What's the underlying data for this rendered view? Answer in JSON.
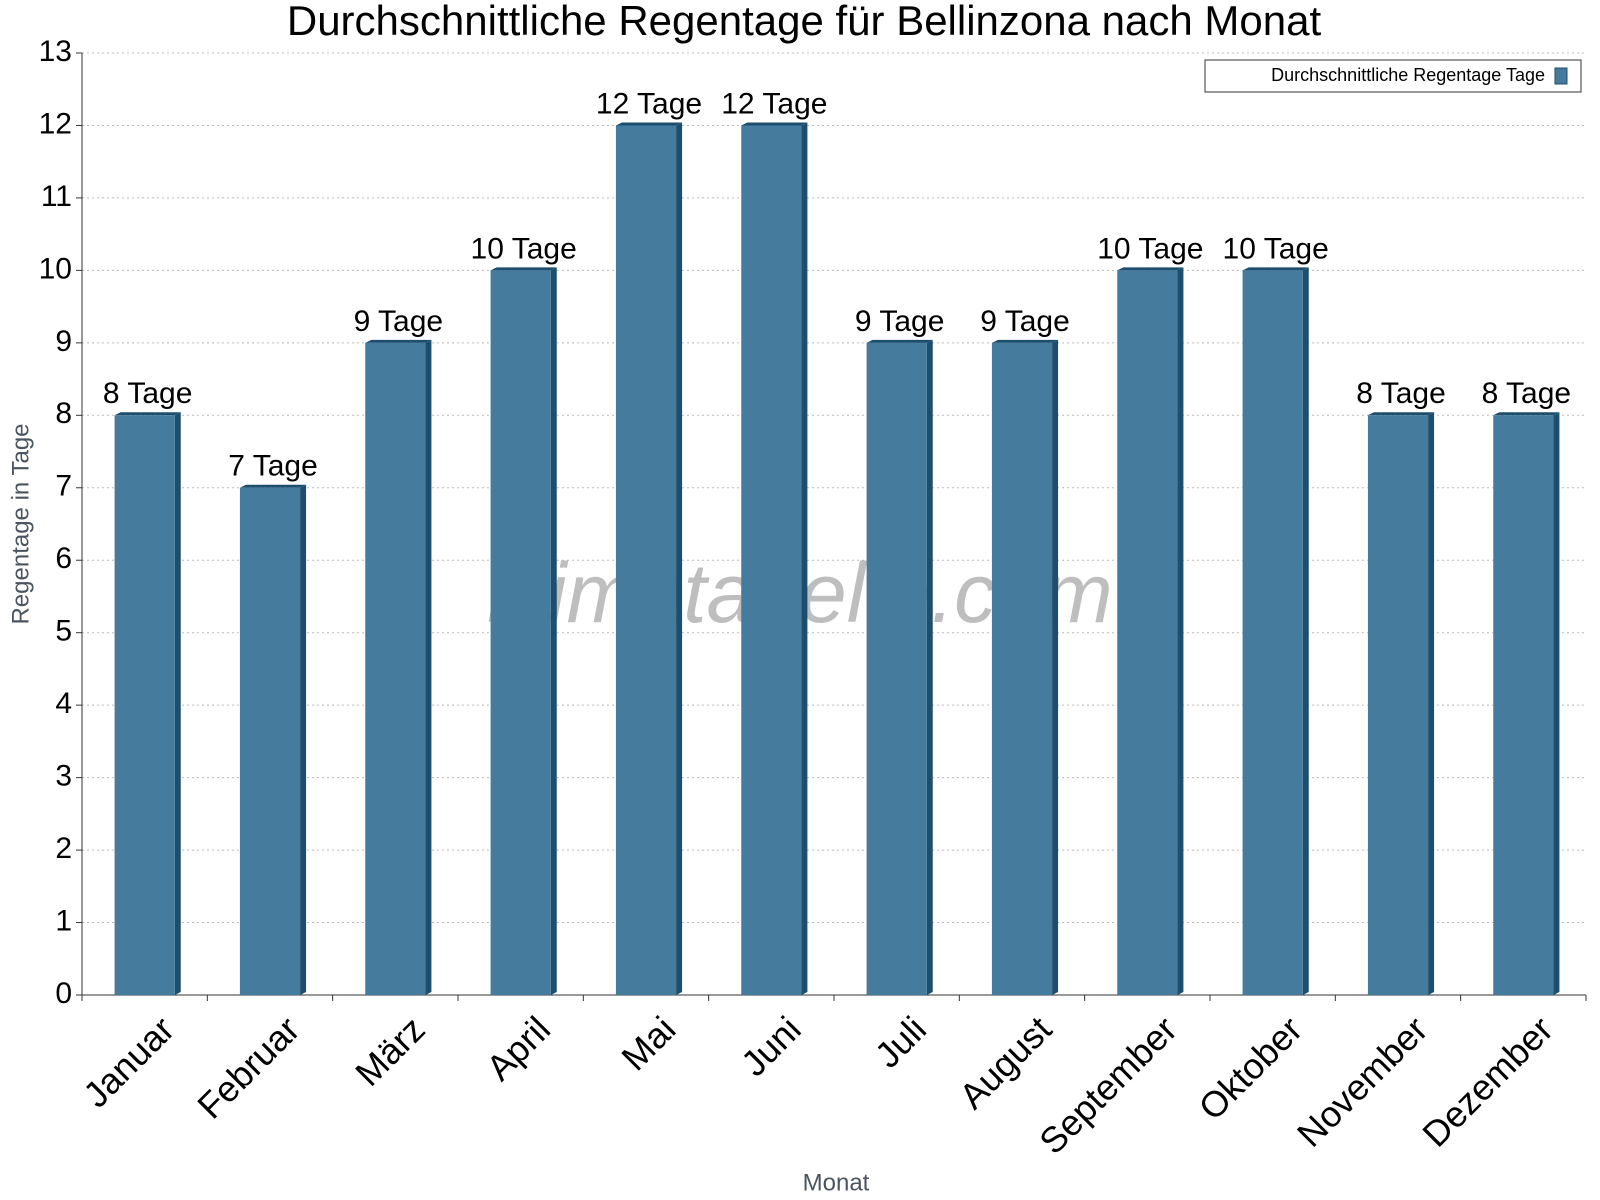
{
  "chart_data": {
    "type": "bar",
    "title": "Durchschnittliche Regentage für Bellinzona nach Monat",
    "x_label": "Monat",
    "y_label": "Regentage in Tage",
    "watermark": "klimatabelle.com",
    "categories": [
      "Januar",
      "Februar",
      "März",
      "April",
      "Mai",
      "Juni",
      "Juli",
      "August",
      "September",
      "Oktober",
      "November",
      "Dezember"
    ],
    "series": [
      {
        "name": "Durchschnittliche Regentage Tage",
        "color": "#457b9d",
        "values": [
          8,
          7,
          9,
          10,
          12,
          12,
          9,
          9,
          10,
          10,
          8,
          8
        ],
        "value_labels": [
          "8 Tage",
          "7 Tage",
          "9 Tage",
          "10 Tage",
          "12 Tage",
          "12 Tage",
          "9 Tage",
          "9 Tage",
          "10 Tage",
          "10 Tage",
          "8 Tage",
          "8 Tage"
        ]
      }
    ],
    "ylim": [
      0,
      13
    ],
    "yticks": [
      0,
      1,
      2,
      3,
      4,
      5,
      6,
      7,
      8,
      9,
      10,
      11,
      12,
      13
    ],
    "grid": true,
    "legend": "top-right"
  }
}
